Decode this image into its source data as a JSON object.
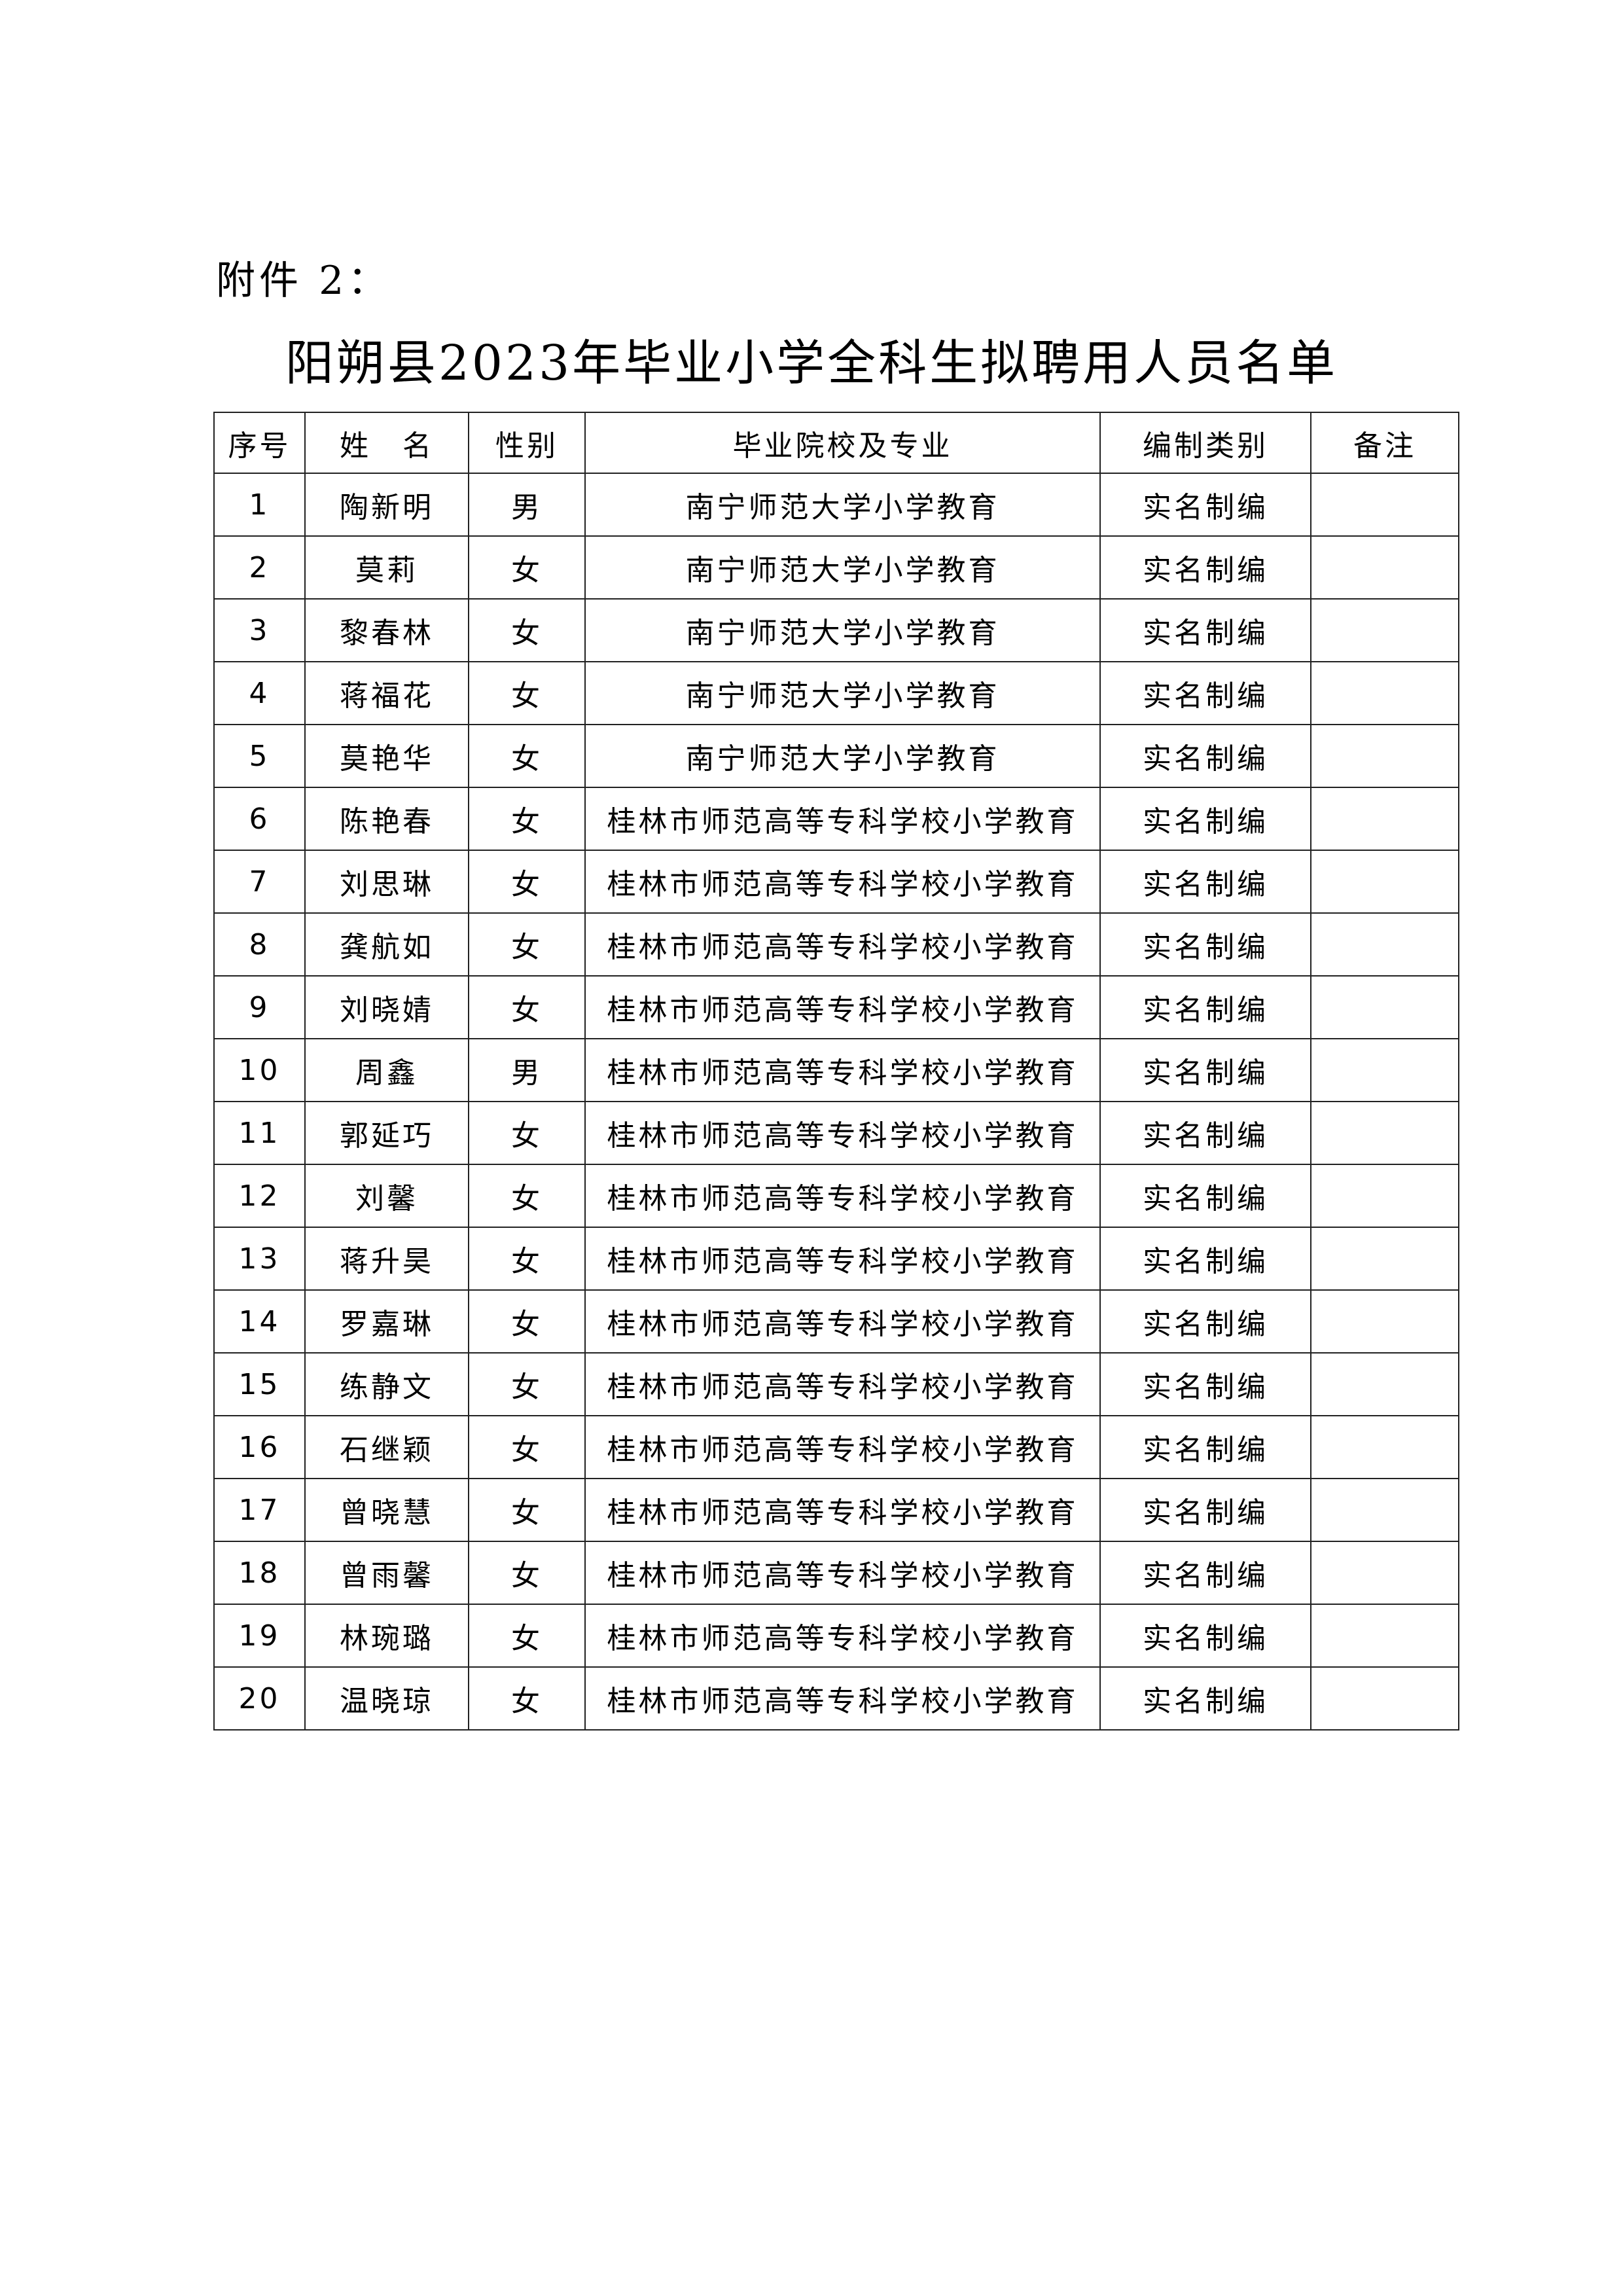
{
  "attachment_label": "附件 2：",
  "title": "阳朔县2023年毕业小学全科生拟聘用人员名单",
  "table": {
    "headers": [
      "序号",
      "姓　名",
      "性别",
      "毕业院校及专业",
      "编制类别",
      "备注"
    ],
    "rows": [
      [
        "1",
        "陶新明",
        "男",
        "南宁师范大学小学教育",
        "实名制编",
        ""
      ],
      [
        "2",
        "莫莉",
        "女",
        "南宁师范大学小学教育",
        "实名制编",
        ""
      ],
      [
        "3",
        "黎春林",
        "女",
        "南宁师范大学小学教育",
        "实名制编",
        ""
      ],
      [
        "4",
        "蒋福花",
        "女",
        "南宁师范大学小学教育",
        "实名制编",
        ""
      ],
      [
        "5",
        "莫艳华",
        "女",
        "南宁师范大学小学教育",
        "实名制编",
        ""
      ],
      [
        "6",
        "陈艳春",
        "女",
        "桂林市师范高等专科学校小学教育",
        "实名制编",
        ""
      ],
      [
        "7",
        "刘思琳",
        "女",
        "桂林市师范高等专科学校小学教育",
        "实名制编",
        ""
      ],
      [
        "8",
        "龚航如",
        "女",
        "桂林市师范高等专科学校小学教育",
        "实名制编",
        ""
      ],
      [
        "9",
        "刘晓婧",
        "女",
        "桂林市师范高等专科学校小学教育",
        "实名制编",
        ""
      ],
      [
        "10",
        "周鑫",
        "男",
        "桂林市师范高等专科学校小学教育",
        "实名制编",
        ""
      ],
      [
        "11",
        "郭延巧",
        "女",
        "桂林市师范高等专科学校小学教育",
        "实名制编",
        ""
      ],
      [
        "12",
        "刘馨",
        "女",
        "桂林市师范高等专科学校小学教育",
        "实名制编",
        ""
      ],
      [
        "13",
        "蒋升昊",
        "女",
        "桂林市师范高等专科学校小学教育",
        "实名制编",
        ""
      ],
      [
        "14",
        "罗嘉琳",
        "女",
        "桂林市师范高等专科学校小学教育",
        "实名制编",
        ""
      ],
      [
        "15",
        "练静文",
        "女",
        "桂林市师范高等专科学校小学教育",
        "实名制编",
        ""
      ],
      [
        "16",
        "石继颖",
        "女",
        "桂林市师范高等专科学校小学教育",
        "实名制编",
        ""
      ],
      [
        "17",
        "曾晓慧",
        "女",
        "桂林市师范高等专科学校小学教育",
        "实名制编",
        ""
      ],
      [
        "18",
        "曾雨馨",
        "女",
        "桂林市师范高等专科学校小学教育",
        "实名制编",
        ""
      ],
      [
        "19",
        "林琬璐",
        "女",
        "桂林市师范高等专科学校小学教育",
        "实名制编",
        ""
      ],
      [
        "20",
        "温晓琼",
        "女",
        "桂林市师范高等专科学校小学教育",
        "实名制编",
        ""
      ]
    ]
  }
}
